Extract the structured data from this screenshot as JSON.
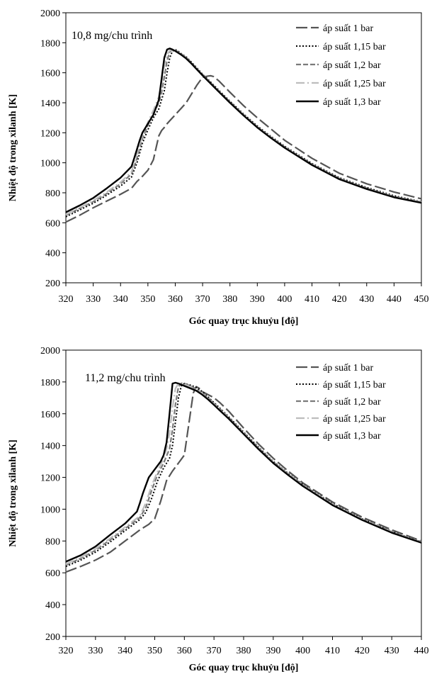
{
  "chart_data": [
    {
      "type": "line",
      "annotation": "10,8 mg/chu trình",
      "xlabel": "Góc quay trục khuỷu [độ]",
      "ylabel": "Nhiệt độ trong xilanh [K]",
      "xlim": [
        320,
        450
      ],
      "ylim": [
        200,
        2000
      ],
      "xticks": [
        "320",
        "330",
        "340",
        "350",
        "360",
        "370",
        "380",
        "390",
        "400",
        "410",
        "420",
        "430",
        "440",
        "450"
      ],
      "yticks": [
        "200",
        "400",
        "600",
        "800",
        "1000",
        "1200",
        "1400",
        "1600",
        "1800",
        "2000"
      ],
      "grid": false,
      "legend_position": "top-right",
      "series": [
        {
          "name": "áp suất 1 bar",
          "color": "#555555",
          "dash": "16,5",
          "width": 2.2,
          "x": [
            320,
            325,
            330,
            335,
            340,
            344,
            346,
            348,
            350,
            352,
            353,
            354,
            355,
            356,
            357,
            358,
            360,
            362,
            364,
            366,
            368,
            370,
            372,
            373,
            374,
            376,
            380,
            385,
            390,
            395,
            400,
            410,
            420,
            430,
            440,
            450
          ],
          "y": [
            605,
            650,
            700,
            745,
            790,
            830,
            875,
            910,
            950,
            1020,
            1100,
            1180,
            1215,
            1235,
            1260,
            1280,
            1320,
            1360,
            1400,
            1460,
            1520,
            1570,
            1578,
            1580,
            1575,
            1545,
            1470,
            1380,
            1300,
            1225,
            1150,
            1030,
            930,
            860,
            805,
            760
          ]
        },
        {
          "name": "áp suất 1,15 bar",
          "color": "#000000",
          "dash": "2,2.5",
          "width": 2.0,
          "x": [
            320,
            325,
            330,
            335,
            340,
            344,
            346,
            348,
            350,
            352,
            354,
            356,
            357,
            358,
            359,
            360,
            361,
            362,
            364,
            366,
            368,
            370,
            372,
            375,
            380,
            385,
            390,
            395,
            400,
            410,
            420,
            430,
            440,
            450
          ],
          "y": [
            640,
            685,
            730,
            785,
            845,
            905,
            1000,
            1130,
            1220,
            1300,
            1360,
            1480,
            1600,
            1700,
            1745,
            1755,
            1745,
            1730,
            1705,
            1670,
            1630,
            1590,
            1555,
            1500,
            1410,
            1325,
            1245,
            1175,
            1110,
            995,
            900,
            835,
            780,
            740
          ]
        },
        {
          "name": "áp suất 1,2 bar",
          "color": "#7a7a7a",
          "dash": "7,3",
          "width": 2.2,
          "x": [
            320,
            325,
            330,
            335,
            340,
            344,
            346,
            348,
            350,
            352,
            354,
            355,
            356,
            357,
            358,
            359,
            360,
            361,
            362,
            364,
            366,
            368,
            370,
            372,
            375,
            380,
            385,
            390,
            395,
            400,
            410,
            420,
            430,
            440,
            450
          ],
          "y": [
            650,
            695,
            740,
            795,
            860,
            925,
            1030,
            1160,
            1250,
            1330,
            1400,
            1470,
            1570,
            1680,
            1740,
            1752,
            1748,
            1740,
            1728,
            1702,
            1665,
            1625,
            1588,
            1550,
            1495,
            1405,
            1320,
            1240,
            1170,
            1105,
            990,
            895,
            830,
            775,
            738
          ]
        },
        {
          "name": "áp suất 1,25 bar",
          "color": "#bdbdbd",
          "dash": "12,4,2,4",
          "width": 2.2,
          "x": [
            320,
            325,
            330,
            335,
            340,
            344,
            346,
            348,
            350,
            352,
            354,
            355,
            356,
            357,
            358,
            359,
            360,
            362,
            364,
            366,
            368,
            370,
            372,
            375,
            380,
            385,
            390,
            395,
            400,
            410,
            420,
            430,
            440,
            450
          ],
          "y": [
            655,
            700,
            748,
            805,
            870,
            940,
            1060,
            1180,
            1270,
            1350,
            1440,
            1540,
            1650,
            1720,
            1748,
            1752,
            1746,
            1724,
            1698,
            1662,
            1622,
            1585,
            1547,
            1492,
            1402,
            1318,
            1238,
            1168,
            1103,
            988,
            893,
            828,
            773,
            736
          ]
        },
        {
          "name": "áp suất 1,3 bar",
          "color": "#000000",
          "dash": "",
          "width": 2.4,
          "x": [
            320,
            325,
            330,
            335,
            340,
            344,
            345,
            346,
            347,
            348,
            350,
            352,
            354,
            355,
            356,
            357,
            358,
            359,
            360,
            362,
            364,
            366,
            368,
            370,
            372,
            375,
            380,
            385,
            390,
            395,
            400,
            410,
            420,
            430,
            440,
            450
          ],
          "y": [
            670,
            715,
            765,
            830,
            900,
            975,
            1030,
            1090,
            1150,
            1200,
            1260,
            1320,
            1420,
            1560,
            1700,
            1755,
            1762,
            1755,
            1745,
            1722,
            1695,
            1660,
            1620,
            1582,
            1545,
            1490,
            1400,
            1315,
            1235,
            1165,
            1100,
            985,
            890,
            825,
            770,
            733
          ]
        }
      ]
    },
    {
      "type": "line",
      "annotation": "11,2 mg/chu trình",
      "xlabel": "Góc quay trục khuỷu [độ]",
      "ylabel": "Nhiệt độ trong xilanh [K]",
      "xlim": [
        320,
        440
      ],
      "ylim": [
        200,
        2000
      ],
      "xticks": [
        "320",
        "330",
        "340",
        "350",
        "360",
        "370",
        "380",
        "390",
        "400",
        "410",
        "420",
        "430",
        "440"
      ],
      "yticks": [
        "200",
        "400",
        "600",
        "800",
        "1000",
        "1200",
        "1400",
        "1600",
        "1800",
        "2000"
      ],
      "grid": false,
      "legend_position": "top-right",
      "series": [
        {
          "name": "áp suất 1 bar",
          "color": "#555555",
          "dash": "16,5",
          "width": 2.2,
          "x": [
            320,
            325,
            330,
            335,
            340,
            345,
            348,
            350,
            352,
            354,
            356,
            358,
            360,
            362,
            363,
            364,
            365,
            366,
            368,
            370,
            372,
            375,
            380,
            385,
            390,
            395,
            400,
            410,
            420,
            430,
            440
          ],
          "y": [
            605,
            640,
            680,
            730,
            800,
            870,
            905,
            940,
            1050,
            1180,
            1240,
            1290,
            1340,
            1600,
            1730,
            1770,
            1760,
            1740,
            1720,
            1700,
            1670,
            1615,
            1510,
            1410,
            1320,
            1240,
            1165,
            1045,
            950,
            870,
            800
          ]
        },
        {
          "name": "áp suất 1,15 bar",
          "color": "#000000",
          "dash": "2,2.5",
          "width": 2.0,
          "x": [
            320,
            325,
            330,
            335,
            340,
            345,
            347,
            349,
            351,
            353,
            355,
            356,
            357,
            358,
            359,
            360,
            362,
            364,
            366,
            368,
            370,
            372,
            375,
            380,
            385,
            390,
            395,
            400,
            410,
            420,
            430,
            440
          ],
          "y": [
            640,
            680,
            730,
            795,
            865,
            935,
            980,
            1070,
            1180,
            1260,
            1320,
            1400,
            1550,
            1700,
            1775,
            1790,
            1780,
            1765,
            1740,
            1705,
            1670,
            1635,
            1580,
            1485,
            1390,
            1300,
            1225,
            1155,
            1035,
            940,
            860,
            795
          ]
        },
        {
          "name": "áp suất 1,2 bar",
          "color": "#7a7a7a",
          "dash": "7,3",
          "width": 2.2,
          "x": [
            320,
            325,
            330,
            335,
            340,
            345,
            347,
            349,
            351,
            353,
            355,
            356,
            357,
            358,
            359,
            360,
            362,
            364,
            366,
            368,
            370,
            372,
            375,
            380,
            385,
            390,
            395,
            400,
            410,
            420,
            430,
            440
          ],
          "y": [
            648,
            690,
            742,
            808,
            878,
            948,
            1010,
            1120,
            1220,
            1290,
            1380,
            1500,
            1660,
            1770,
            1792,
            1790,
            1775,
            1755,
            1730,
            1700,
            1665,
            1630,
            1575,
            1480,
            1385,
            1298,
            1222,
            1152,
            1032,
            938,
            858,
            793
          ]
        },
        {
          "name": "áp suất 1,25 bar",
          "color": "#bdbdbd",
          "dash": "12,4,2,4",
          "width": 2.2,
          "x": [
            320,
            325,
            330,
            335,
            340,
            345,
            347,
            349,
            351,
            353,
            354,
            355,
            356,
            357,
            358,
            360,
            362,
            364,
            366,
            368,
            370,
            372,
            375,
            380,
            385,
            390,
            395,
            400,
            410,
            420,
            430,
            440
          ],
          "y": [
            655,
            697,
            750,
            818,
            888,
            958,
            1040,
            1150,
            1240,
            1320,
            1380,
            1480,
            1640,
            1760,
            1790,
            1785,
            1770,
            1750,
            1725,
            1695,
            1660,
            1625,
            1572,
            1477,
            1382,
            1295,
            1220,
            1150,
            1030,
            936,
            856,
            792
          ]
        },
        {
          "name": "áp suất 1,3 bar",
          "color": "#000000",
          "dash": "",
          "width": 2.4,
          "x": [
            320,
            325,
            330,
            335,
            340,
            344,
            345,
            346,
            347,
            348,
            350,
            352,
            353,
            354,
            355,
            356,
            357,
            358,
            360,
            362,
            364,
            366,
            368,
            370,
            372,
            375,
            380,
            385,
            390,
            395,
            400,
            410,
            420,
            430,
            440
          ],
          "y": [
            670,
            710,
            765,
            840,
            910,
            985,
            1040,
            1100,
            1150,
            1200,
            1250,
            1300,
            1340,
            1420,
            1600,
            1790,
            1795,
            1790,
            1775,
            1760,
            1745,
            1720,
            1690,
            1655,
            1620,
            1568,
            1473,
            1378,
            1290,
            1215,
            1145,
            1025,
            932,
            852,
            789
          ]
        }
      ]
    }
  ]
}
